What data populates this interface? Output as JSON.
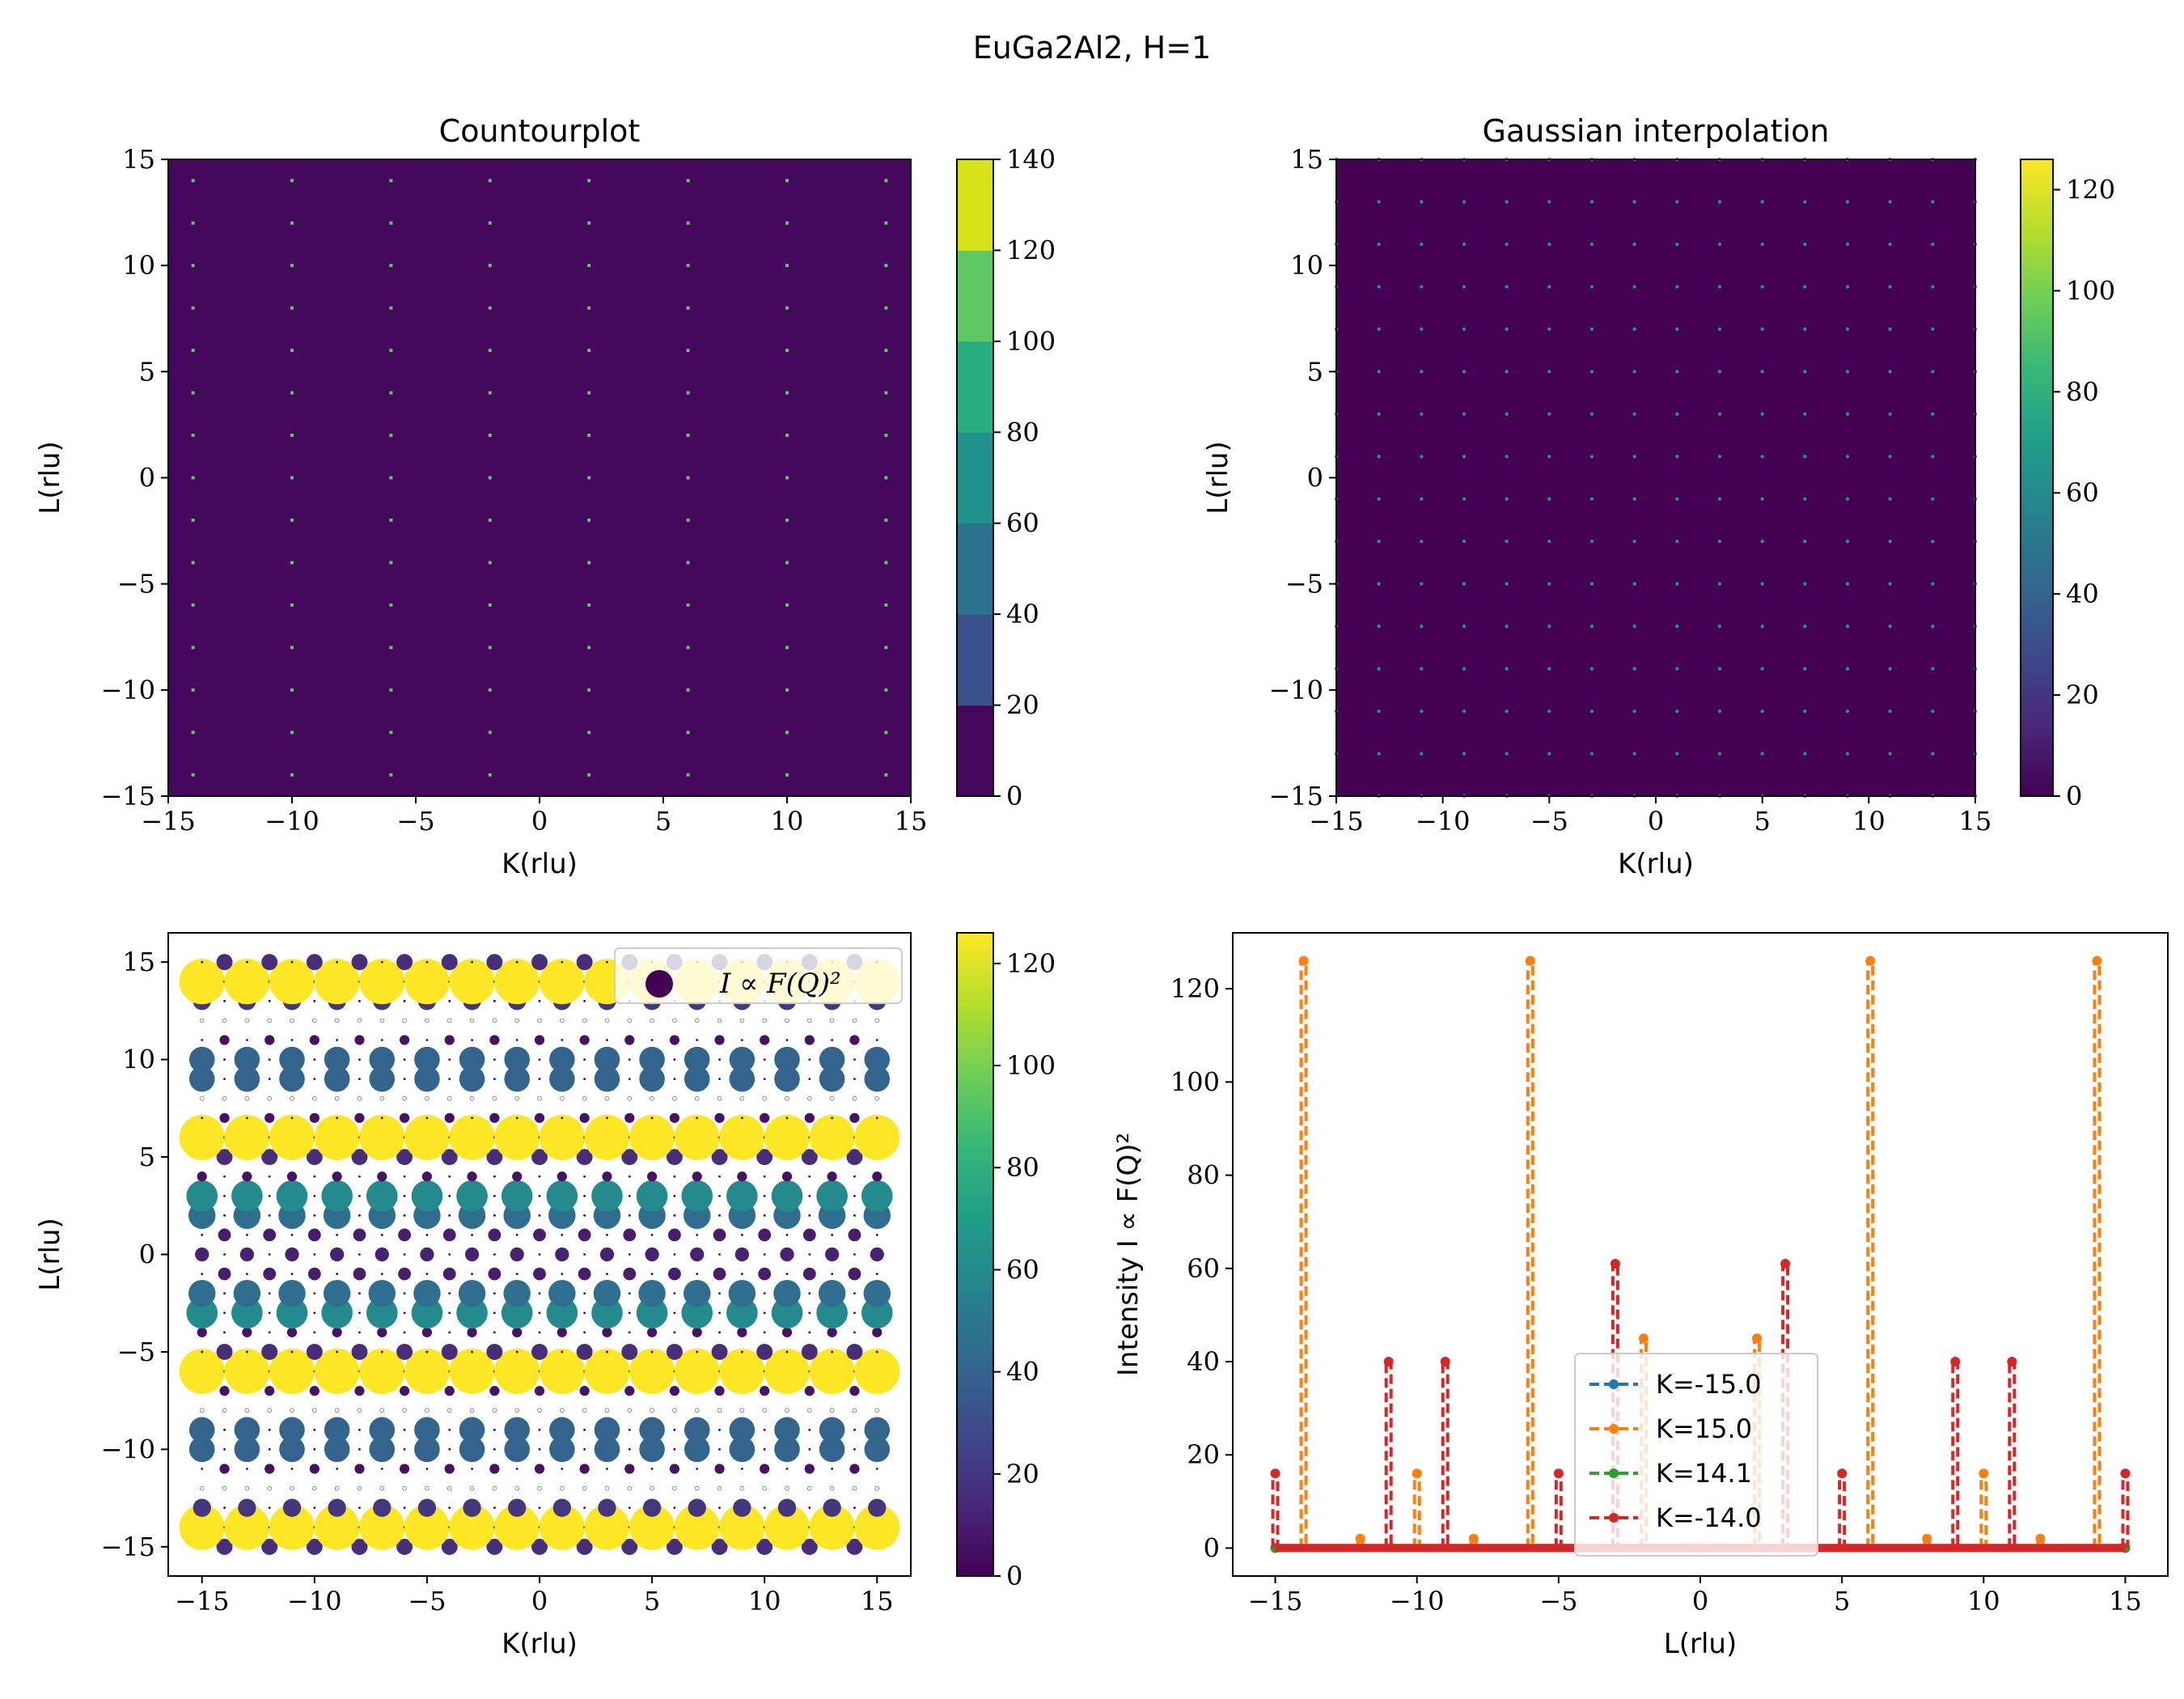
{
  "figure": {
    "suptitle": "EuGa2Al2, H=1"
  },
  "chart_data": [
    {
      "id": "contour",
      "type": "heatmap",
      "title": "Countourplot",
      "xlabel": "K(rlu)",
      "ylabel": "L(rlu)",
      "xlim": [
        -15,
        15
      ],
      "ylim": [
        -15,
        15
      ],
      "xticks": [
        -15,
        -10,
        -5,
        0,
        5,
        10,
        15
      ],
      "yticks": [
        -15,
        -10,
        -5,
        0,
        5,
        10,
        15
      ],
      "background_color": "#46085c",
      "colorbar": {
        "ticks": [
          0,
          20,
          40,
          60,
          80,
          100,
          120,
          140
        ],
        "levels": [
          0,
          20,
          40,
          60,
          80,
          100,
          120,
          140
        ],
        "level_colors": [
          "#46085c",
          "#3b518b",
          "#2c718e",
          "#21918c",
          "#28ae80",
          "#5ec962",
          "#d8e219"
        ]
      },
      "peaks": {
        "k_values": [
          -14,
          -10,
          -6,
          -2,
          2,
          6,
          10,
          14
        ],
        "l_values": [
          -14,
          -12,
          -10,
          -8,
          -6,
          -4,
          -2,
          0,
          2,
          4,
          6,
          8,
          10,
          12,
          14
        ]
      }
    },
    {
      "id": "gaussian",
      "type": "heatmap",
      "title": "Gaussian interpolation",
      "xlabel": "K(rlu)",
      "ylabel": "L(rlu)",
      "xlim": [
        -15,
        15
      ],
      "ylim": [
        -15,
        15
      ],
      "xticks": [
        -15,
        -10,
        -5,
        0,
        5,
        10,
        15
      ],
      "yticks": [
        -15,
        -10,
        -5,
        0,
        5,
        10,
        15
      ],
      "background_color": "#440154",
      "colorbar": {
        "ticks": [
          0,
          20,
          40,
          60,
          80,
          100,
          120
        ],
        "vmin": 0,
        "vmax": 126
      },
      "peaks": {
        "k_values": [
          -15,
          -13,
          -11,
          -9,
          -7,
          -5,
          -3,
          -1,
          1,
          3,
          5,
          7,
          9,
          11,
          13,
          15
        ],
        "l_values": [
          -15,
          -13,
          -11,
          -9,
          -7,
          -5,
          -3,
          -1,
          1,
          3,
          5,
          7,
          9,
          11,
          13,
          15
        ]
      }
    },
    {
      "id": "scatter",
      "type": "scatter",
      "xlabel": "K(rlu)",
      "ylabel": "L(rlu)",
      "xlim": [
        -16.5,
        16.5
      ],
      "ylim": [
        -16.5,
        16.5
      ],
      "xticks": [
        -15,
        -10,
        -5,
        0,
        5,
        10,
        15
      ],
      "yticks": [
        -15,
        -10,
        -5,
        0,
        5,
        10,
        15
      ],
      "legend": {
        "label": "I ∝ F(Q)²",
        "location": "top-right"
      },
      "colorbar": {
        "ticks": [
          0,
          20,
          40,
          60,
          80,
          100,
          120
        ],
        "vmin": 0,
        "vmax": 126
      },
      "k_range": [
        -15,
        15
      ],
      "l_range": [
        -15,
        15
      ],
      "intensity_by_L": {
        "14": 126,
        "6": 126,
        "-6": 126,
        "-14": 126,
        "13": 20,
        "10": 40,
        "9": 40,
        "5": 16,
        "3": 60,
        "2": 45,
        "-2": 45,
        "-3": 60,
        "-5": 16,
        "-9": 40,
        "-10": 40,
        "-13": 20,
        "15": 16,
        "12": 2,
        "11": 6,
        "8": 2,
        "7": 6,
        "4": 6,
        "1": 10,
        "0": 12,
        "-1": 10,
        "-4": 6,
        "-7": 6,
        "-8": 2,
        "-11": 6,
        "-12": 2,
        "-15": 16
      },
      "hollow_rows_L": [
        12,
        8,
        -8,
        -12
      ]
    },
    {
      "id": "lines",
      "type": "line",
      "xlabel": "L(rlu)",
      "ylabel": "Intensity I ∝ F(Q)²",
      "xlim": [
        -16.5,
        16.5
      ],
      "ylim": [
        -6,
        132
      ],
      "xticks": [
        -15,
        -10,
        -5,
        0,
        5,
        10,
        15
      ],
      "yticks": [
        0,
        20,
        40,
        60,
        80,
        100,
        120
      ],
      "legend": {
        "location": "lower-center"
      },
      "series": [
        {
          "name": "K=-15.0",
          "color": "#1f77b4",
          "points": [
            [
              -15,
              0
            ],
            [
              15,
              0
            ]
          ]
        },
        {
          "name": "K=15.0",
          "color": "#ff7f0e",
          "points": [
            [
              -15,
              0
            ],
            [
              -14,
              126
            ],
            [
              -12,
              2
            ],
            [
              -10,
              16
            ],
            [
              -8,
              2
            ],
            [
              -6,
              126
            ],
            [
              -4,
              0
            ],
            [
              -2,
              45
            ],
            [
              0,
              0
            ],
            [
              2,
              45
            ],
            [
              4,
              0
            ],
            [
              6,
              126
            ],
            [
              8,
              2
            ],
            [
              10,
              16
            ],
            [
              12,
              2
            ],
            [
              14,
              126
            ],
            [
              15,
              0
            ]
          ]
        },
        {
          "name": "K=14.1",
          "color": "#2ca02c",
          "points": [
            [
              -15,
              0
            ],
            [
              15,
              0
            ]
          ]
        },
        {
          "name": "K=-14.0",
          "color": "#d62728",
          "points": [
            [
              -15,
              16
            ],
            [
              -11,
              40
            ],
            [
              -9,
              40
            ],
            [
              -5,
              16
            ],
            [
              -3,
              61
            ],
            [
              3,
              61
            ],
            [
              5,
              16
            ],
            [
              9,
              40
            ],
            [
              11,
              40
            ],
            [
              15,
              16
            ]
          ]
        }
      ]
    }
  ]
}
